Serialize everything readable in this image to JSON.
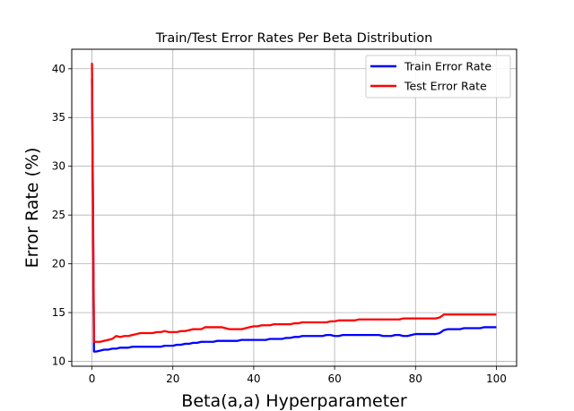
{
  "chart_data": {
    "type": "line",
    "title": "Train/Test Error Rates Per Beta Distribution",
    "xlabel": "Beta(a,a) Hyperparameter",
    "ylabel": "Error Rate (%)",
    "xlim": [
      -5,
      105
    ],
    "ylim": [
      9.5,
      42
    ],
    "xticks": [
      0,
      20,
      40,
      60,
      80,
      100
    ],
    "yticks": [
      10,
      15,
      20,
      25,
      30,
      35,
      40
    ],
    "grid": true,
    "legend_position": "top-right",
    "series": [
      {
        "name": "Train Error Rate",
        "color": "#0000ff",
        "x": [
          0,
          0.5,
          1,
          2,
          3,
          4,
          5,
          6,
          7,
          8,
          9,
          10,
          11,
          12,
          13,
          14,
          15,
          16,
          17,
          18,
          19,
          20,
          21,
          22,
          23,
          24,
          25,
          26,
          27,
          28,
          29,
          30,
          31,
          32,
          33,
          34,
          35,
          36,
          37,
          38,
          39,
          40,
          41,
          42,
          43,
          44,
          45,
          46,
          47,
          48,
          49,
          50,
          51,
          52,
          53,
          54,
          55,
          56,
          57,
          58,
          59,
          60,
          61,
          62,
          63,
          64,
          65,
          66,
          67,
          68,
          69,
          70,
          71,
          72,
          73,
          74,
          75,
          76,
          77,
          78,
          79,
          80,
          81,
          82,
          83,
          84,
          85,
          86,
          87,
          88,
          89,
          90,
          91,
          92,
          93,
          94,
          95,
          96,
          97,
          98,
          99,
          100
        ],
        "y": [
          39.0,
          11.0,
          11.0,
          11.1,
          11.2,
          11.2,
          11.3,
          11.3,
          11.4,
          11.4,
          11.4,
          11.5,
          11.5,
          11.5,
          11.5,
          11.5,
          11.5,
          11.5,
          11.5,
          11.6,
          11.6,
          11.6,
          11.7,
          11.7,
          11.8,
          11.8,
          11.9,
          11.9,
          12.0,
          12.0,
          12.0,
          12.0,
          12.1,
          12.1,
          12.1,
          12.1,
          12.1,
          12.1,
          12.2,
          12.2,
          12.2,
          12.2,
          12.2,
          12.2,
          12.2,
          12.3,
          12.3,
          12.3,
          12.3,
          12.4,
          12.4,
          12.5,
          12.5,
          12.6,
          12.6,
          12.6,
          12.6,
          12.6,
          12.6,
          12.7,
          12.7,
          12.6,
          12.6,
          12.7,
          12.7,
          12.7,
          12.7,
          12.7,
          12.7,
          12.7,
          12.7,
          12.7,
          12.7,
          12.6,
          12.6,
          12.6,
          12.7,
          12.7,
          12.6,
          12.6,
          12.7,
          12.8,
          12.8,
          12.8,
          12.8,
          12.8,
          12.8,
          12.9,
          13.2,
          13.3,
          13.3,
          13.3,
          13.3,
          13.4,
          13.4,
          13.4,
          13.4,
          13.4,
          13.5,
          13.5,
          13.5,
          13.5
        ]
      },
      {
        "name": "Test Error Rate",
        "color": "#ff0000",
        "x": [
          0,
          0.5,
          1,
          2,
          3,
          4,
          5,
          6,
          7,
          8,
          9,
          10,
          11,
          12,
          13,
          14,
          15,
          16,
          17,
          18,
          19,
          20,
          21,
          22,
          23,
          24,
          25,
          26,
          27,
          28,
          29,
          30,
          31,
          32,
          33,
          34,
          35,
          36,
          37,
          38,
          39,
          40,
          41,
          42,
          43,
          44,
          45,
          46,
          47,
          48,
          49,
          50,
          51,
          52,
          53,
          54,
          55,
          56,
          57,
          58,
          59,
          60,
          61,
          62,
          63,
          64,
          65,
          66,
          67,
          68,
          69,
          70,
          71,
          72,
          73,
          74,
          75,
          76,
          77,
          78,
          79,
          80,
          81,
          82,
          83,
          84,
          85,
          86,
          87,
          88,
          89,
          90,
          91,
          92,
          93,
          94,
          95,
          96,
          97,
          98,
          99,
          100
        ],
        "y": [
          40.6,
          12.0,
          12.0,
          12.0,
          12.1,
          12.2,
          12.3,
          12.6,
          12.5,
          12.6,
          12.6,
          12.7,
          12.8,
          12.9,
          12.9,
          12.9,
          12.9,
          13.0,
          13.0,
          13.1,
          13.0,
          13.0,
          13.0,
          13.1,
          13.1,
          13.2,
          13.3,
          13.3,
          13.3,
          13.5,
          13.5,
          13.5,
          13.5,
          13.5,
          13.4,
          13.3,
          13.3,
          13.3,
          13.3,
          13.4,
          13.5,
          13.6,
          13.6,
          13.7,
          13.7,
          13.7,
          13.8,
          13.8,
          13.8,
          13.8,
          13.8,
          13.9,
          13.9,
          14.0,
          14.0,
          14.0,
          14.0,
          14.0,
          14.0,
          14.0,
          14.1,
          14.1,
          14.2,
          14.2,
          14.2,
          14.2,
          14.2,
          14.3,
          14.3,
          14.3,
          14.3,
          14.3,
          14.3,
          14.3,
          14.3,
          14.3,
          14.3,
          14.3,
          14.4,
          14.4,
          14.4,
          14.4,
          14.4,
          14.4,
          14.4,
          14.4,
          14.4,
          14.5,
          14.8,
          14.8,
          14.8,
          14.8,
          14.8,
          14.8,
          14.8,
          14.8,
          14.8,
          14.8,
          14.8,
          14.8,
          14.8,
          14.8
        ]
      }
    ]
  }
}
